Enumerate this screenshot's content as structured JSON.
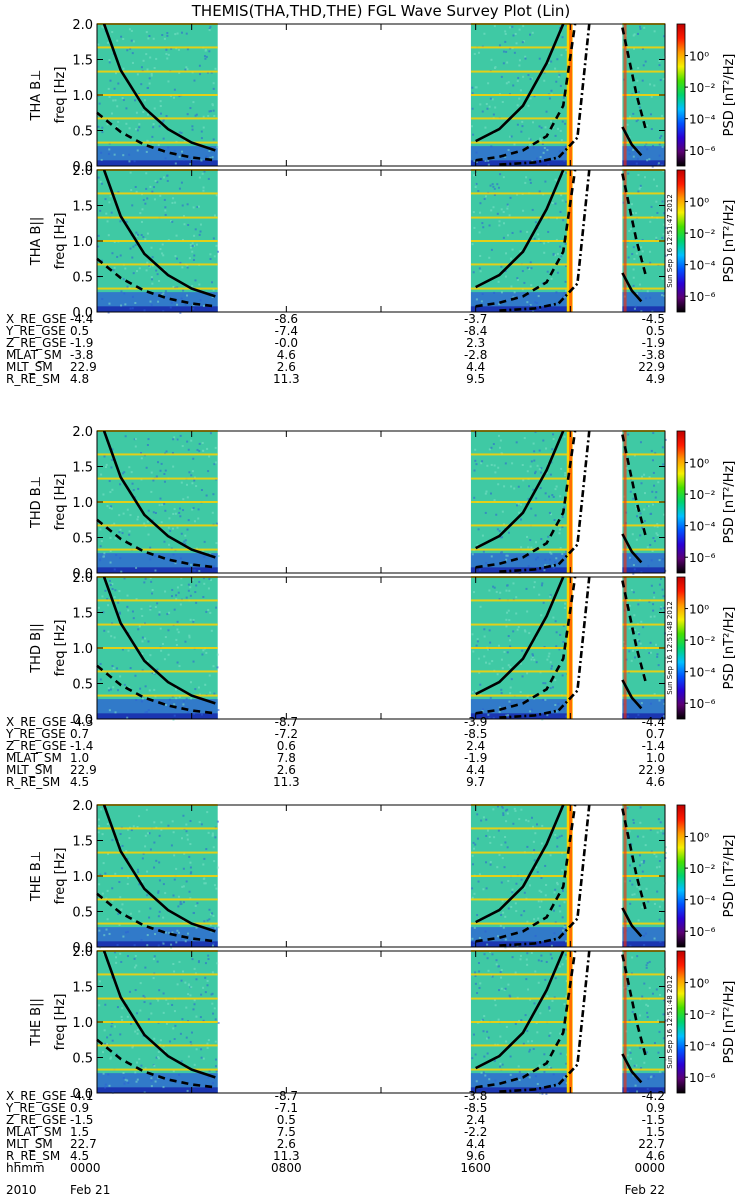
{
  "title": "THEMIS(THA,THD,THE) FGL Wave Survey Plot (Lin)",
  "colors": {
    "background_spec": "#3fc9a4",
    "noise_blue": "#2d5fd6",
    "noise_dark": "#1a2fae",
    "line_orange": "#ffd100",
    "hot_red": "#ff2a00",
    "white_gap": "#ffffff",
    "axis": "#000000"
  },
  "colorbar": {
    "label": "PSD [nT²/Hz]",
    "tick_labels": [
      "10⁰",
      "10⁻²",
      "10⁻⁴",
      "10⁻⁶"
    ],
    "tick_values": [
      0,
      -2,
      -4,
      -6
    ],
    "range_log10": [
      -7,
      2
    ],
    "stops": [
      "#000000",
      "#5b0072",
      "#2a00d5",
      "#0052ff",
      "#00c0ff",
      "#00d36e",
      "#45e000",
      "#f5f000",
      "#ff9a00",
      "#ff1a00",
      "#c00000"
    ]
  },
  "stamps": [
    "Sun Sep 16 12:51:47 2012",
    "Sun Sep 16 12:51:48 2012",
    "Sun Sep 16 12:51:48 2012"
  ],
  "panels": [
    {
      "probe": "THA",
      "comp": "B⊥",
      "ylabel": "freq [Hz]",
      "yticks": [
        "0.0",
        "0.5",
        "1.0",
        "1.5",
        "2.0"
      ]
    },
    {
      "probe": "THA",
      "comp": "B||",
      "ylabel": "freq [Hz]",
      "yticks": [
        "0.0",
        "0.5",
        "1.0",
        "1.5",
        "2.0"
      ]
    },
    {
      "probe": "THD",
      "comp": "B⊥",
      "ylabel": "freq [Hz]",
      "yticks": [
        "0.0",
        "0.5",
        "1.0",
        "1.5",
        "2.0"
      ]
    },
    {
      "probe": "THD",
      "comp": "B||",
      "ylabel": "freq [Hz]",
      "yticks": [
        "0.0",
        "0.5",
        "1.0",
        "1.5",
        "2.0"
      ]
    },
    {
      "probe": "THE",
      "comp": "B⊥",
      "ylabel": "freq [Hz]",
      "yticks": [
        "0.0",
        "0.5",
        "1.0",
        "1.5",
        "2.0"
      ]
    },
    {
      "probe": "THE",
      "comp": "B||",
      "ylabel": "freq [Hz]",
      "yticks": [
        "0.0",
        "0.5",
        "1.0",
        "1.5",
        "2.0"
      ]
    }
  ],
  "ephemeris_blocks": [
    {
      "rows": [
        {
          "name": "X_RE_GSE",
          "values": [
            "-4.4",
            "-8.6",
            "-3.7",
            "-4.5"
          ]
        },
        {
          "name": "Y_RE_GSE",
          "values": [
            "0.5",
            "-7.4",
            "-8.4",
            "0.5"
          ]
        },
        {
          "name": "Z_RE_GSE",
          "values": [
            "-1.9",
            "-0.0",
            "2.3",
            "-1.9"
          ]
        },
        {
          "name": "MLAT_SM",
          "values": [
            "-3.8",
            "4.6",
            "-2.8",
            "-3.8"
          ]
        },
        {
          "name": "MLT_SM",
          "values": [
            "22.9",
            "2.6",
            "4.4",
            "22.9"
          ]
        },
        {
          "name": "R_RE_SM",
          "values": [
            "4.8",
            "11.3",
            "9.5",
            "4.9"
          ]
        }
      ]
    },
    {
      "rows": [
        {
          "name": "X_RE_GSE",
          "values": [
            "-4.3",
            "-8.7",
            "-3.9",
            "-4.4"
          ]
        },
        {
          "name": "Y_RE_GSE",
          "values": [
            "0.7",
            "-7.2",
            "-8.5",
            "0.7"
          ]
        },
        {
          "name": "Z_RE_GSE",
          "values": [
            "-1.4",
            "0.6",
            "2.4",
            "-1.4"
          ]
        },
        {
          "name": "MLAT_SM",
          "values": [
            "1.0",
            "7.8",
            "-1.9",
            "1.0"
          ]
        },
        {
          "name": "MLT_SM",
          "values": [
            "22.9",
            "2.6",
            "4.4",
            "22.9"
          ]
        },
        {
          "name": "R_RE_SM",
          "values": [
            "4.5",
            "11.3",
            "9.7",
            "4.6"
          ]
        }
      ]
    },
    {
      "rows": [
        {
          "name": "X_RE_GSE",
          "values": [
            "-4.1",
            "-8.7",
            "-3.8",
            "-4.2"
          ]
        },
        {
          "name": "Y_RE_GSE",
          "values": [
            "0.9",
            "-7.1",
            "-8.5",
            "0.9"
          ]
        },
        {
          "name": "Z_RE_GSE",
          "values": [
            "-1.5",
            "0.5",
            "2.4",
            "-1.5"
          ]
        },
        {
          "name": "MLAT_SM",
          "values": [
            "1.5",
            "7.5",
            "-2.2",
            "1.5"
          ]
        },
        {
          "name": "MLT_SM",
          "values": [
            "22.7",
            "2.6",
            "4.4",
            "22.7"
          ]
        },
        {
          "name": "R_RE_SM",
          "values": [
            "4.5",
            "11.3",
            "9.6",
            "4.6"
          ]
        },
        {
          "name": "hhmm",
          "values": [
            "0000",
            "0800",
            "1600",
            "0000"
          ]
        }
      ]
    }
  ],
  "date_row": {
    "year": "2010",
    "start": "Feb 21",
    "end": "Feb 22"
  },
  "chart_data": {
    "type": "heatmap",
    "title": "THEMIS(THA,THD,THE) FGL Wave Survey Plot (Lin)",
    "x_axis": {
      "label": "hhmm",
      "range_hours": [
        0,
        24
      ],
      "tick_labels": [
        "0000",
        "0800",
        "1600",
        "0000"
      ],
      "date_start": "2010 Feb 21",
      "date_end": "Feb 22"
    },
    "y_axis": {
      "label": "freq [Hz]",
      "range": [
        0,
        2.0
      ],
      "ticks": [
        0.0,
        0.5,
        1.0,
        1.5,
        2.0
      ]
    },
    "z_axis": {
      "label": "PSD [nT²/Hz]",
      "scale": "log",
      "ticks_log10": [
        0,
        -2,
        -4,
        -6
      ]
    },
    "data_coverage_hours": [
      [
        0,
        5.1
      ],
      [
        15.8,
        20.0
      ],
      [
        22.2,
        24.0
      ]
    ],
    "overlay_curves": [
      {
        "style": "solid",
        "x_hours": [
          0.3,
          1.0,
          2.0,
          3.0,
          4.0,
          5.0
        ],
        "freq_hz": [
          2.0,
          1.35,
          0.82,
          0.52,
          0.33,
          0.22
        ]
      },
      {
        "style": "dashed",
        "x_hours": [
          0.0,
          1.0,
          2.0,
          3.0,
          4.0,
          5.0
        ],
        "freq_hz": [
          0.75,
          0.48,
          0.3,
          0.19,
          0.12,
          0.08
        ]
      },
      {
        "style": "solid",
        "x_hours": [
          16.0,
          17.0,
          18.0,
          19.0,
          19.7
        ],
        "freq_hz": [
          0.35,
          0.52,
          0.85,
          1.45,
          2.0
        ]
      },
      {
        "style": "dashed",
        "x_hours": [
          16.0,
          17.0,
          18.0,
          19.0,
          19.7,
          20.2
        ],
        "freq_hz": [
          0.08,
          0.13,
          0.22,
          0.42,
          0.85,
          2.0
        ]
      },
      {
        "style": "dash-dot",
        "x_hours": [
          17.0,
          18.5,
          19.5,
          20.3,
          20.8
        ],
        "freq_hz": [
          0.02,
          0.05,
          0.12,
          0.4,
          2.0
        ]
      },
      {
        "style": "solid",
        "x_hours": [
          22.2,
          22.6,
          23.0
        ],
        "freq_hz": [
          0.55,
          0.3,
          0.15
        ]
      },
      {
        "style": "dashed",
        "x_hours": [
          22.2,
          22.8,
          23.2
        ],
        "freq_hz": [
          1.95,
          1.0,
          0.5
        ]
      }
    ],
    "grid": false
  }
}
